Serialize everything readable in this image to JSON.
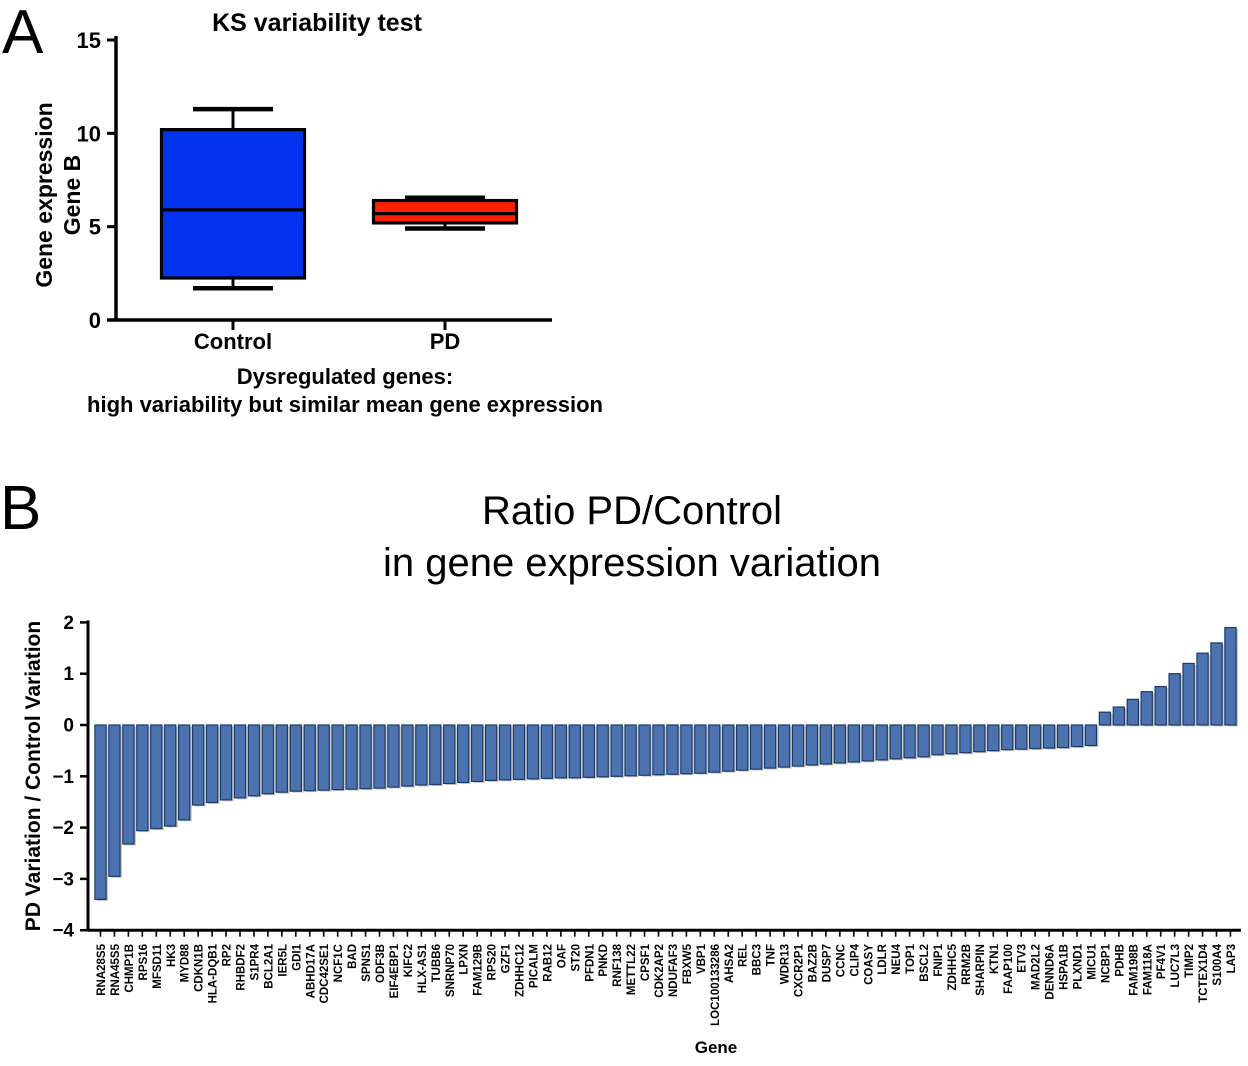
{
  "figure": {
    "panel_a_label": "A",
    "panel_b_label": "B"
  },
  "chart_data": [
    {
      "type": "boxplot",
      "panel": "A",
      "title": "KS variability test",
      "ylabel_line1": "Gene expression",
      "ylabel_line2": "Gene B",
      "ylim": [
        0,
        15
      ],
      "yticks": [
        15,
        10,
        5,
        0
      ],
      "categories": [
        "Control",
        "PD"
      ],
      "xlabel_line1": "Dysregulated genes:",
      "xlabel_line2": "high variability but similar mean gene expression",
      "grid": false,
      "legend": "none",
      "series": [
        {
          "name": "Control",
          "whisker_low": 1.7,
          "q1": 2.25,
          "median": 5.9,
          "q3": 10.2,
          "whisker_high": 11.3,
          "fill": "#0433F0"
        },
        {
          "name": "PD",
          "whisker_low": 4.9,
          "q1": 5.2,
          "median": 5.7,
          "q3": 6.4,
          "whisker_high": 6.55,
          "fill": "#FF2000"
        }
      ]
    },
    {
      "type": "bar",
      "panel": "B",
      "title_line1": "Ratio PD/Control",
      "title_line2": "in gene expression variation",
      "ylabel": "PD Variation / Control Variation",
      "xlabel": "Gene",
      "ylim": [
        -4,
        2
      ],
      "yticks": [
        2,
        1,
        0,
        -1,
        -2,
        -3,
        -4
      ],
      "grid": false,
      "legend": "none",
      "bar_fill": "#4C72B0",
      "bar_stroke": "#1B3A66",
      "categories": [
        "RNA28S5",
        "RNA45S5",
        "CHMP1B",
        "RPS16",
        "MFSD11",
        "HK3",
        "MYD88",
        "CDKN1B",
        "HLA-DQB1",
        "RP2",
        "RHBDF2",
        "S1PR4",
        "BCL2A1",
        "IER5L",
        "GDI1",
        "ABHD17A",
        "CDC42SE1",
        "NCF1C",
        "BAD",
        "SPNS1",
        "ODF3B",
        "EIF4EBP1",
        "KIFC2",
        "HLX-AS1",
        "TUBB6",
        "SNRNP70",
        "LPXN",
        "FAM129B",
        "RPS20",
        "GZF1",
        "ZDHHC12",
        "PICALM",
        "RAB12",
        "OAF",
        "ST20",
        "PFDN1",
        "PNKD",
        "RNF138",
        "METTL22",
        "CPSF1",
        "CDK2AP2",
        "NDUFAF3",
        "FBXW5",
        "VBP1",
        "LOC100133286",
        "AHSA2",
        "REL",
        "BBC3",
        "TNF",
        "WDR13",
        "CXCR2P1",
        "BAZ2B",
        "DUSP7",
        "CCNC",
        "CLIP4",
        "COASY",
        "LDLR",
        "NEU4",
        "TOP1",
        "BSCL2",
        "FNIP1",
        "ZDHHC5",
        "RRM2B",
        "SHARPIN",
        "KTN1",
        "FAAP100",
        "ETV3",
        "MAD2L2",
        "DENND6A",
        "HSPA1B",
        "PLXND1",
        "MICU1",
        "NCBP1",
        "PDHB",
        "FAM198B",
        "FAM118A",
        "PF4V1",
        "LUC7L3",
        "TIMP2",
        "TCTEX1D4",
        "S100A4",
        "LAP3"
      ],
      "values": [
        -3.4,
        -2.95,
        -2.32,
        -2.06,
        -2.02,
        -1.97,
        -1.85,
        -1.56,
        -1.51,
        -1.46,
        -1.42,
        -1.38,
        -1.34,
        -1.31,
        -1.29,
        -1.28,
        -1.27,
        -1.26,
        -1.25,
        -1.24,
        -1.23,
        -1.21,
        -1.19,
        -1.17,
        -1.16,
        -1.14,
        -1.12,
        -1.1,
        -1.08,
        -1.07,
        -1.06,
        -1.05,
        -1.04,
        -1.03,
        -1.03,
        -1.02,
        -1.01,
        -1.0,
        -0.99,
        -0.98,
        -0.97,
        -0.96,
        -0.95,
        -0.94,
        -0.92,
        -0.9,
        -0.88,
        -0.86,
        -0.84,
        -0.82,
        -0.8,
        -0.78,
        -0.76,
        -0.74,
        -0.72,
        -0.7,
        -0.68,
        -0.66,
        -0.64,
        -0.62,
        -0.58,
        -0.56,
        -0.54,
        -0.52,
        -0.5,
        -0.48,
        -0.47,
        -0.46,
        -0.45,
        -0.44,
        -0.42,
        -0.4,
        0.25,
        0.35,
        0.5,
        0.65,
        0.75,
        1.0,
        1.2,
        1.4,
        1.6,
        1.9
      ]
    }
  ]
}
